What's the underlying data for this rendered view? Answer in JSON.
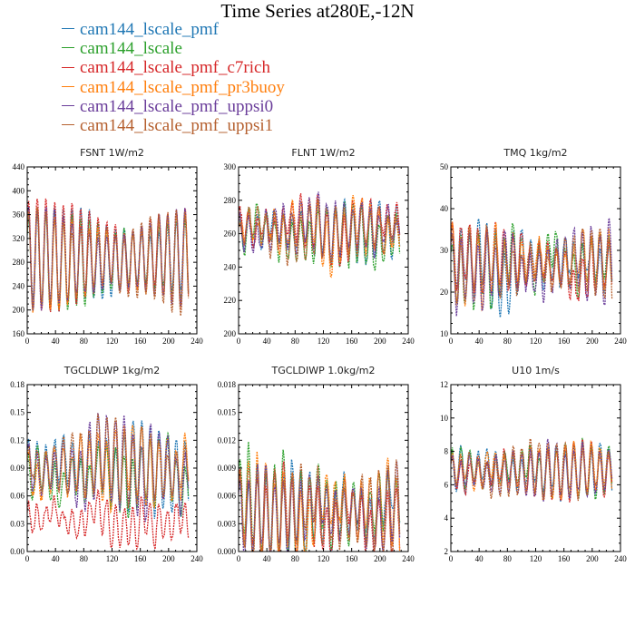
{
  "title": "Time Series at280E,-12N",
  "colors": {
    "cam144_lscale_pmf": "#1f77b4",
    "cam144_lscale": "#2ca02c",
    "cam144_lscale_pmf_c7rich": "#d62728",
    "cam144_lscale_pmf_pr3buoy": "#ff7f0e",
    "cam144_lscale_pmf_uppsi0": "#6a3d9a",
    "cam144_lscale_pmf_uppsi1": "#b5602f"
  },
  "legend": [
    {
      "label": "cam144_lscale_pmf",
      "color": "#1f77b4"
    },
    {
      "label": "cam144_lscale",
      "color": "#2ca02c"
    },
    {
      "label": "cam144_lscale_pmf_c7rich",
      "color": "#d62728"
    },
    {
      "label": "cam144_lscale_pmf_pr3buoy",
      "color": "#ff7f0e"
    },
    {
      "label": "cam144_lscale_pmf_uppsi0",
      "color": "#6a3d9a"
    },
    {
      "label": "cam144_lscale_pmf_uppsi1",
      "color": "#b5602f"
    }
  ],
  "chart_data": [
    {
      "type": "line",
      "title": "FSNT   1W/m2",
      "xlim": [
        0,
        240
      ],
      "ylim": [
        160,
        440
      ],
      "xticks": [
        "0",
        "40",
        "80",
        "120",
        "160",
        "200",
        "240"
      ],
      "yticks": [
        "160",
        "200",
        "240",
        "280",
        "320",
        "360",
        "400",
        "440"
      ],
      "series": [
        {
          "name": "cam144_lscale_pmf",
          "color": "#1f77b4",
          "mean": 285,
          "amp": 85,
          "period": 12.3,
          "noise": 8,
          "seed": 1
        },
        {
          "name": "cam144_lscale",
          "color": "#2ca02c",
          "mean": 285,
          "amp": 85,
          "period": 12.3,
          "noise": 8,
          "seed": 2
        },
        {
          "name": "cam144_lscale_pmf_c7rich",
          "color": "#d62728",
          "mean": 292,
          "amp": 95,
          "period": 12.3,
          "noise": 6,
          "seed": 3
        },
        {
          "name": "cam144_lscale_pmf_pr3buoy",
          "color": "#ff7f0e",
          "mean": 285,
          "amp": 85,
          "period": 12.3,
          "noise": 8,
          "seed": 4
        },
        {
          "name": "cam144_lscale_pmf_uppsi0",
          "color": "#6a3d9a",
          "mean": 283,
          "amp": 85,
          "period": 12.3,
          "noise": 8,
          "seed": 5
        },
        {
          "name": "cam144_lscale_pmf_uppsi1",
          "color": "#b5602f",
          "mean": 285,
          "amp": 85,
          "period": 12.3,
          "noise": 8,
          "seed": 6
        }
      ]
    },
    {
      "type": "line",
      "title": "FLNT   1W/m2",
      "xlim": [
        0,
        240
      ],
      "ylim": [
        200,
        300
      ],
      "xticks": [
        "0",
        "40",
        "80",
        "120",
        "160",
        "200",
        "240"
      ],
      "yticks": [
        "200",
        "220",
        "240",
        "260",
        "280",
        "300"
      ],
      "series": [
        {
          "name": "cam144_lscale_pmf",
          "color": "#1f77b4",
          "mean": 262,
          "amp": 16,
          "period": 12.3,
          "noise": 6,
          "seed": 11
        },
        {
          "name": "cam144_lscale",
          "color": "#2ca02c",
          "mean": 260,
          "amp": 17,
          "period": 12.3,
          "noise": 7,
          "seed": 12
        },
        {
          "name": "cam144_lscale_pmf_c7rich",
          "color": "#d62728",
          "mean": 265,
          "amp": 15,
          "period": 12.3,
          "noise": 7,
          "seed": 13
        },
        {
          "name": "cam144_lscale_pmf_pr3buoy",
          "color": "#ff7f0e",
          "mean": 262,
          "amp": 16,
          "period": 12.3,
          "noise": 6,
          "seed": 14
        },
        {
          "name": "cam144_lscale_pmf_uppsi0",
          "color": "#6a3d9a",
          "mean": 263,
          "amp": 16,
          "period": 12.3,
          "noise": 6,
          "seed": 15
        },
        {
          "name": "cam144_lscale_pmf_uppsi1",
          "color": "#b5602f",
          "mean": 262,
          "amp": 16,
          "period": 12.3,
          "noise": 6,
          "seed": 16
        }
      ]
    },
    {
      "type": "line",
      "title": "TMQ   1kg/m2",
      "xlim": [
        0,
        240
      ],
      "ylim": [
        10,
        50
      ],
      "xticks": [
        "0",
        "40",
        "80",
        "120",
        "160",
        "200",
        "240"
      ],
      "yticks": [
        "10",
        "20",
        "30",
        "40",
        "50"
      ],
      "series": [
        {
          "name": "cam144_lscale_pmf",
          "color": "#1f77b4",
          "mean": 27,
          "amp": 8,
          "period": 12.3,
          "noise": 3,
          "seed": 21
        },
        {
          "name": "cam144_lscale",
          "color": "#2ca02c",
          "mean": 27,
          "amp": 8,
          "period": 12.3,
          "noise": 3,
          "seed": 22
        },
        {
          "name": "cam144_lscale_pmf_c7rich",
          "color": "#d62728",
          "mean": 27,
          "amp": 8,
          "period": 12.3,
          "noise": 3,
          "seed": 23
        },
        {
          "name": "cam144_lscale_pmf_pr3buoy",
          "color": "#ff7f0e",
          "mean": 27,
          "amp": 8,
          "period": 12.3,
          "noise": 3,
          "seed": 24
        },
        {
          "name": "cam144_lscale_pmf_uppsi0",
          "color": "#6a3d9a",
          "mean": 26,
          "amp": 9,
          "period": 12.3,
          "noise": 3,
          "seed": 25
        },
        {
          "name": "cam144_lscale_pmf_uppsi1",
          "color": "#b5602f",
          "mean": 27,
          "amp": 8,
          "period": 12.3,
          "noise": 3,
          "seed": 26
        }
      ]
    },
    {
      "type": "line",
      "title": "TGCLDLWP   1kg/m2",
      "xlim": [
        0,
        240
      ],
      "ylim": [
        0,
        0.18
      ],
      "xticks": [
        "0",
        "40",
        "80",
        "120",
        "160",
        "200",
        "240"
      ],
      "yticks": [
        "0.00",
        "0.03",
        "0.06",
        "0.09",
        "0.12",
        "0.15",
        "0.18"
      ],
      "series": [
        {
          "name": "cam144_lscale_pmf",
          "color": "#1f77b4",
          "mean": 0.09,
          "amp": 0.045,
          "period": 12.3,
          "noise": 0.012,
          "seed": 31
        },
        {
          "name": "cam144_lscale",
          "color": "#2ca02c",
          "mean": 0.085,
          "amp": 0.035,
          "period": 12.3,
          "noise": 0.012,
          "seed": 32
        },
        {
          "name": "cam144_lscale_pmf_c7rich",
          "color": "#d62728",
          "mean": 0.035,
          "amp": 0.025,
          "period": 12.3,
          "noise": 0.01,
          "seed": 33
        },
        {
          "name": "cam144_lscale_pmf_pr3buoy",
          "color": "#ff7f0e",
          "mean": 0.09,
          "amp": 0.04,
          "period": 12.3,
          "noise": 0.012,
          "seed": 34
        },
        {
          "name": "cam144_lscale_pmf_uppsi0",
          "color": "#6a3d9a",
          "mean": 0.09,
          "amp": 0.045,
          "period": 12.3,
          "noise": 0.014,
          "seed": 35
        },
        {
          "name": "cam144_lscale_pmf_uppsi1",
          "color": "#b5602f",
          "mean": 0.09,
          "amp": 0.042,
          "period": 12.3,
          "noise": 0.012,
          "seed": 36
        }
      ]
    },
    {
      "type": "line",
      "title": "TGCLDIWP   1.0kg/m2",
      "xlim": [
        0,
        240
      ],
      "ylim": [
        0,
        0.018
      ],
      "xticks": [
        "0",
        "40",
        "80",
        "120",
        "160",
        "200",
        "240"
      ],
      "yticks": [
        "0.000",
        "0.003",
        "0.006",
        "0.009",
        "0.012",
        "0.015",
        "0.018"
      ],
      "series": [
        {
          "name": "cam144_lscale_pmf",
          "color": "#1f77b4",
          "mean": 0.004,
          "amp": 0.0045,
          "period": 12.3,
          "noise": 0.0015,
          "seed": 41
        },
        {
          "name": "cam144_lscale",
          "color": "#2ca02c",
          "mean": 0.0045,
          "amp": 0.005,
          "period": 12.3,
          "noise": 0.0017,
          "seed": 42
        },
        {
          "name": "cam144_lscale_pmf_c7rich",
          "color": "#d62728",
          "mean": 0.004,
          "amp": 0.0045,
          "period": 12.3,
          "noise": 0.0015,
          "seed": 43
        },
        {
          "name": "cam144_lscale_pmf_pr3buoy",
          "color": "#ff7f0e",
          "mean": 0.0045,
          "amp": 0.005,
          "period": 12.3,
          "noise": 0.0017,
          "seed": 44
        },
        {
          "name": "cam144_lscale_pmf_uppsi0",
          "color": "#6a3d9a",
          "mean": 0.004,
          "amp": 0.0045,
          "period": 12.3,
          "noise": 0.0015,
          "seed": 45
        },
        {
          "name": "cam144_lscale_pmf_uppsi1",
          "color": "#b5602f",
          "mean": 0.0045,
          "amp": 0.005,
          "period": 12.3,
          "noise": 0.0016,
          "seed": 46
        }
      ]
    },
    {
      "type": "line",
      "title": "U10   1m/s",
      "xlim": [
        0,
        240
      ],
      "ylim": [
        2,
        12
      ],
      "xticks": [
        "0",
        "40",
        "80",
        "120",
        "160",
        "200",
        "240"
      ],
      "yticks": [
        "2",
        "4",
        "6",
        "8",
        "10",
        "12"
      ],
      "series": [
        {
          "name": "cam144_lscale_pmf",
          "color": "#1f77b4",
          "mean": 6.8,
          "amp": 1.6,
          "period": 12.3,
          "noise": 0.4,
          "seed": 51
        },
        {
          "name": "cam144_lscale",
          "color": "#2ca02c",
          "mean": 6.8,
          "amp": 1.6,
          "period": 12.3,
          "noise": 0.4,
          "seed": 52
        },
        {
          "name": "cam144_lscale_pmf_c7rich",
          "color": "#d62728",
          "mean": 6.8,
          "amp": 1.6,
          "period": 12.3,
          "noise": 0.4,
          "seed": 53
        },
        {
          "name": "cam144_lscale_pmf_pr3buoy",
          "color": "#ff7f0e",
          "mean": 6.8,
          "amp": 1.6,
          "period": 12.3,
          "noise": 0.4,
          "seed": 54
        },
        {
          "name": "cam144_lscale_pmf_uppsi0",
          "color": "#6a3d9a",
          "mean": 6.8,
          "amp": 1.6,
          "period": 12.3,
          "noise": 0.4,
          "seed": 55
        },
        {
          "name": "cam144_lscale_pmf_uppsi1",
          "color": "#b5602f",
          "mean": 6.8,
          "amp": 1.6,
          "period": 12.3,
          "noise": 0.4,
          "seed": 56
        }
      ]
    }
  ]
}
